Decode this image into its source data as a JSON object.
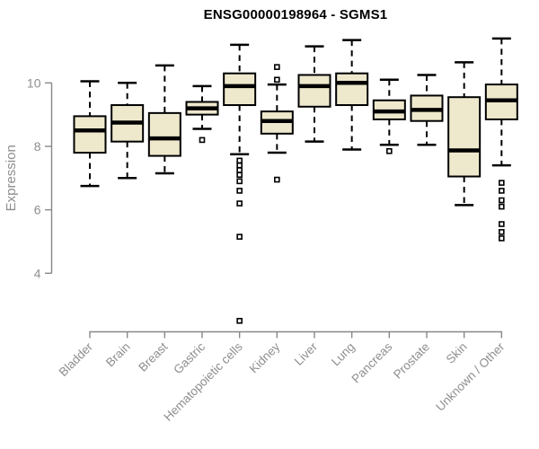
{
  "title": "ENSG00000198964 - SGMS1",
  "colors": {
    "box_fill": "#EEE8CD",
    "box_stroke": "#000000",
    "median": "#000000",
    "whisker": "#000000",
    "outlier_stroke": "#000000",
    "outlier_fill": "#ffffff",
    "axis_line": "#888888",
    "tick_label": "#8e8e8e",
    "axis_label": "#8e8e8e",
    "title": "#000000",
    "background": "#ffffff"
  },
  "chart_data": {
    "type": "boxplot",
    "title": "ENSG00000198964 - SGMS1",
    "xlabel": "",
    "ylabel": "Expression",
    "yticks": [
      4,
      6,
      8,
      10
    ],
    "ylim": [
      2.2,
      11.6
    ],
    "grid": false,
    "legend": "none",
    "categories": [
      "Bladder",
      "Brain",
      "Breast",
      "Gastric",
      "Hematopoietic cells",
      "Kidney",
      "Liver",
      "Lung",
      "Pancreas",
      "Prostate",
      "Skin",
      "Unknown / Other"
    ],
    "boxes": [
      {
        "category": "Bladder",
        "whisker_low": 6.75,
        "q1": 7.8,
        "median": 8.5,
        "q3": 8.95,
        "whisker_high": 10.05,
        "outliers": []
      },
      {
        "category": "Brain",
        "whisker_low": 7.0,
        "q1": 8.15,
        "median": 8.75,
        "q3": 9.3,
        "whisker_high": 10.0,
        "outliers": []
      },
      {
        "category": "Breast",
        "whisker_low": 7.15,
        "q1": 7.7,
        "median": 8.25,
        "q3": 9.05,
        "whisker_high": 10.55,
        "outliers": []
      },
      {
        "category": "Gastric",
        "whisker_low": 8.55,
        "q1": 9.0,
        "median": 9.2,
        "q3": 9.4,
        "whisker_high": 9.9,
        "outliers": [
          8.2
        ]
      },
      {
        "category": "Hematopoietic cells",
        "whisker_low": 7.75,
        "q1": 9.3,
        "median": 9.9,
        "q3": 10.3,
        "whisker_high": 11.2,
        "outliers": [
          7.55,
          7.4,
          7.25,
          7.1,
          6.9,
          6.6,
          6.2,
          5.15,
          2.5
        ]
      },
      {
        "category": "Kidney",
        "whisker_low": 7.8,
        "q1": 8.4,
        "median": 8.8,
        "q3": 9.1,
        "whisker_high": 9.95,
        "outliers": [
          10.5,
          10.1,
          6.95
        ]
      },
      {
        "category": "Liver",
        "whisker_low": 8.15,
        "q1": 9.25,
        "median": 9.9,
        "q3": 10.25,
        "whisker_high": 11.15,
        "outliers": []
      },
      {
        "category": "Lung",
        "whisker_low": 7.9,
        "q1": 9.3,
        "median": 10.0,
        "q3": 10.3,
        "whisker_high": 11.35,
        "outliers": []
      },
      {
        "category": "Pancreas",
        "whisker_low": 8.05,
        "q1": 8.85,
        "median": 9.1,
        "q3": 9.45,
        "whisker_high": 10.1,
        "outliers": [
          7.85
        ]
      },
      {
        "category": "Prostate",
        "whisker_low": 8.05,
        "q1": 8.8,
        "median": 9.15,
        "q3": 9.6,
        "whisker_high": 10.25,
        "outliers": []
      },
      {
        "category": "Skin",
        "whisker_low": 6.15,
        "q1": 7.05,
        "median": 7.87,
        "q3": 9.55,
        "whisker_high": 10.65,
        "outliers": []
      },
      {
        "category": "Unknown / Other",
        "whisker_low": 7.4,
        "q1": 8.85,
        "median": 9.45,
        "q3": 9.95,
        "whisker_high": 11.4,
        "outliers": [
          6.85,
          6.6,
          6.3,
          6.1,
          5.55,
          5.3,
          5.1
        ]
      }
    ]
  }
}
